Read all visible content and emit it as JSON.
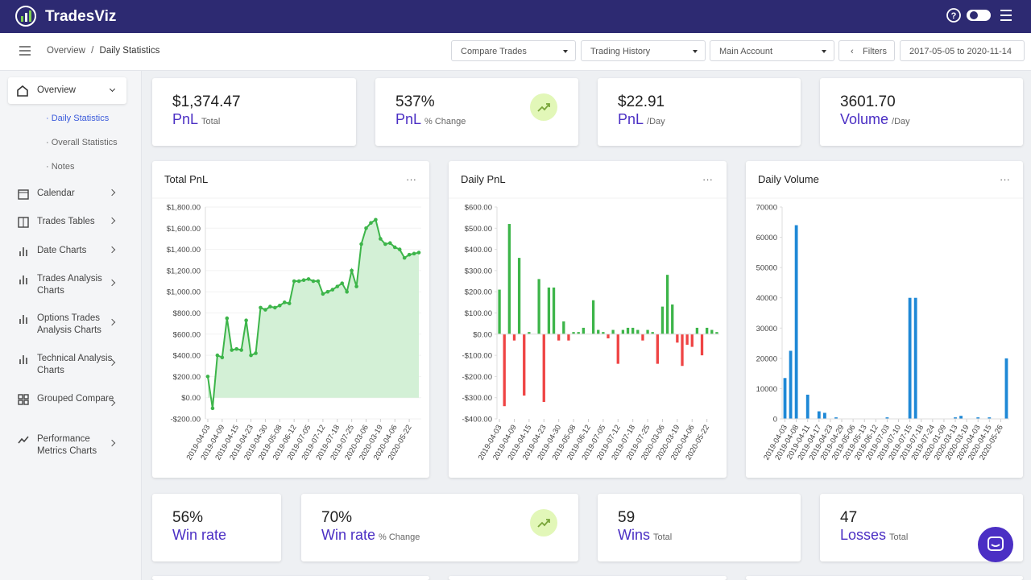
{
  "header": {
    "brand": "TradesViz"
  },
  "breadcrumb": {
    "parent": "Overview",
    "current": "Daily Statistics"
  },
  "toolbar": {
    "compare": "Compare Trades",
    "history": "Trading History",
    "account": "Main Account",
    "filters": "Filters",
    "date_range": "2017-05-05 to 2020-11-14"
  },
  "sidebar": {
    "items": [
      {
        "label": "Overview",
        "children": [
          "Daily Statistics",
          "Overall Statistics",
          "Notes"
        ]
      },
      {
        "label": "Calendar"
      },
      {
        "label": "Trades Tables"
      },
      {
        "label": "Date Charts"
      },
      {
        "label": "Trades Analysis Charts"
      },
      {
        "label": "Options Trades Analysis Charts"
      },
      {
        "label": "Technical Analysis Charts"
      },
      {
        "label": "Grouped Compare"
      },
      {
        "label": "Performance Metrics Charts"
      }
    ]
  },
  "stat_cards": [
    {
      "value": "$1,374.47",
      "label": "PnL",
      "sublabel": "Total"
    },
    {
      "value": "537%",
      "label": "PnL",
      "sublabel": "% Change"
    },
    {
      "value": "$22.91",
      "label": "PnL",
      "sublabel": "/Day"
    },
    {
      "value": "3601.70",
      "label": "Volume",
      "sublabel": "/Day"
    }
  ],
  "stat_cards_bottom": [
    {
      "value": "56%",
      "label": "Win rate"
    },
    {
      "value": "70%",
      "label": "Win rate",
      "sublabel": "% Change"
    },
    {
      "value": "59",
      "label": "Wins",
      "sublabel": "Total"
    },
    {
      "value": "47",
      "label": "Losses",
      "sublabel": "Total"
    }
  ],
  "chart_data": [
    {
      "type": "area",
      "title": "Total PnL",
      "color": "#3db54a",
      "fill": "#d3f0d6",
      "grid": true,
      "categories": [
        "2019-04-03",
        null,
        null,
        "2019-04-09",
        null,
        null,
        "2019-04-15",
        null,
        null,
        "2019-04-23",
        null,
        null,
        "2019-04-30",
        null,
        null,
        "2019-05-08",
        null,
        null,
        "2019-06-12",
        null,
        null,
        "2019-07-05",
        null,
        null,
        "2019-07-12",
        null,
        null,
        "2019-07-18",
        null,
        null,
        "2019-07-25",
        null,
        null,
        "2020-03-06",
        null,
        null,
        "2020-03-19",
        null,
        null,
        "2020-04-06",
        null,
        null,
        "2020-05-22",
        null,
        null
      ],
      "values": [
        200,
        -100,
        400,
        380,
        750,
        450,
        460,
        450,
        730,
        400,
        420,
        850,
        830,
        860,
        850,
        870,
        900,
        890,
        1100,
        1100,
        1110,
        1120,
        1100,
        1100,
        980,
        1000,
        1020,
        1050,
        1080,
        1000,
        1200,
        1050,
        1450,
        1600,
        1650,
        1680,
        1500,
        1450,
        1460,
        1420,
        1400,
        1320,
        1350,
        1360,
        1370
      ],
      "ylim": [
        -200,
        1800
      ],
      "yticks": [
        {
          "value": -200,
          "label": "-$200.00"
        },
        {
          "value": 0,
          "label": "$0.00"
        },
        {
          "value": 200,
          "label": "$200.00"
        },
        {
          "value": 400,
          "label": "$400.00"
        },
        {
          "value": 600,
          "label": "$600.00"
        },
        {
          "value": 800,
          "label": "$800.00"
        },
        {
          "value": 1000,
          "label": "$1,000.00"
        },
        {
          "value": 1200,
          "label": "$1,200.00"
        },
        {
          "value": 1400,
          "label": "$1,400.00"
        },
        {
          "value": 1600,
          "label": "$1,600.00"
        },
        {
          "value": 1800,
          "label": "$1,800.00"
        }
      ]
    },
    {
      "type": "bar",
      "title": "Daily PnL",
      "color": "#3db54a",
      "negative_color": "#ef4444",
      "grid": false,
      "categories": [
        "2019-04-03",
        null,
        null,
        "2019-04-09",
        null,
        null,
        "2019-04-15",
        null,
        null,
        "2019-04-23",
        null,
        null,
        "2019-04-30",
        null,
        null,
        "2019-05-08",
        null,
        null,
        "2019-06-12",
        null,
        null,
        "2019-07-05",
        null,
        null,
        "2019-07-12",
        null,
        null,
        "2019-07-18",
        null,
        null,
        "2019-07-25",
        null,
        null,
        "2020-03-06",
        null,
        null,
        "2020-03-19",
        null,
        null,
        "2020-04-06",
        null,
        null,
        "2020-05-22",
        null,
        null
      ],
      "values": [
        210,
        -340,
        520,
        -30,
        360,
        -290,
        10,
        0,
        260,
        -320,
        220,
        220,
        -30,
        60,
        -30,
        10,
        10,
        30,
        0,
        160,
        20,
        10,
        -20,
        20,
        -140,
        20,
        30,
        30,
        20,
        -30,
        20,
        10,
        -140,
        130,
        280,
        140,
        -40,
        -150,
        -50,
        -60,
        30,
        -100,
        30,
        20,
        10
      ],
      "ylim": [
        -400,
        600
      ],
      "yticks": [
        {
          "value": -400,
          "label": "-$400.00"
        },
        {
          "value": -300,
          "label": "-$300.00"
        },
        {
          "value": -200,
          "label": "-$200.00"
        },
        {
          "value": -100,
          "label": "-$100.00"
        },
        {
          "value": 0,
          "label": "$0.00"
        },
        {
          "value": 100,
          "label": "$100.00"
        },
        {
          "value": 200,
          "label": "$200.00"
        },
        {
          "value": 300,
          "label": "$300.00"
        },
        {
          "value": 400,
          "label": "$400.00"
        },
        {
          "value": 500,
          "label": "$500.00"
        },
        {
          "value": 600,
          "label": "$600.00"
        }
      ]
    },
    {
      "type": "bar",
      "title": "Daily Volume",
      "color": "#1e88d6",
      "grid": false,
      "categories": [
        "2019-04-03",
        null,
        "2019-04-08",
        null,
        "2019-04-11",
        null,
        "2019-04-17",
        null,
        "2019-04-23",
        null,
        "2019-04-29",
        null,
        "2019-05-06",
        null,
        "2019-05-13",
        null,
        "2019-06-12",
        null,
        "2019-07-03",
        null,
        "2019-07-10",
        null,
        "2019-07-15",
        null,
        "2019-07-18",
        null,
        "2019-07-24",
        null,
        "2020-01-09",
        null,
        "2020-03-13",
        null,
        "2020-03-19",
        null,
        "2020-04-03",
        null,
        "2020-04-15",
        null,
        "2020-05-26",
        null
      ],
      "values": [
        13500,
        22500,
        64000,
        0,
        8000,
        0,
        2500,
        2000,
        0,
        500,
        0,
        0,
        0,
        0,
        0,
        0,
        0,
        0,
        500,
        0,
        0,
        0,
        40000,
        40000,
        0,
        0,
        0,
        0,
        0,
        0,
        500,
        1000,
        0,
        0,
        500,
        0,
        500,
        0,
        0,
        20000
      ],
      "ylim": [
        0,
        70000
      ],
      "yticks": [
        0,
        10000,
        20000,
        30000,
        40000,
        50000,
        60000,
        70000
      ]
    }
  ]
}
